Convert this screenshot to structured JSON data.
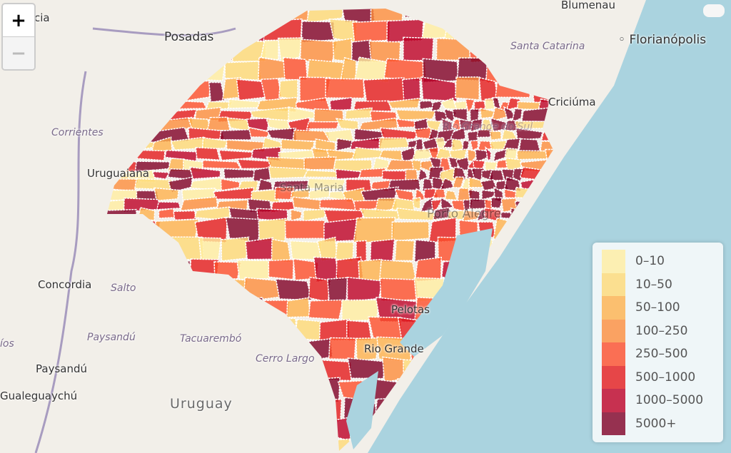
{
  "map": {
    "zoom_in_label": "+",
    "zoom_out_label": "−",
    "labels": {
      "cidade_partial": "cia",
      "posadas": "Posadas",
      "blumenau": "Blumenau",
      "florianopolis": "Florianópolis",
      "santa_catarina": "Santa Catarina",
      "criciuma": "Criciúma",
      "corrientes": "Corrientes",
      "uruguaiana": "Uruguaiana",
      "concordia": "Concordia",
      "salto": "Salto",
      "paysandu_region": "Paysandú",
      "tacuarembo": "Tacuarembó",
      "paysandu": "Paysandú",
      "rios": "íos",
      "gualeguaychu": "Gualeguaychú",
      "cerro_largo": "Cerro Largo",
      "uruguay": "Uruguay",
      "rio_grande": "Rio Grande",
      "pelotas": "Pelotas",
      "porto_alegre": "Porto Alegre",
      "santa_maria": "Santa Maria",
      "rs": "Rio Grande do Sul"
    },
    "colors": {
      "land": "#f2efe9",
      "water": "#aad3df",
      "border": "#ffffff"
    }
  },
  "legend": {
    "items": [
      {
        "label": "0–10",
        "color": "#ffeda0"
      },
      {
        "label": "10–50",
        "color": "#fed976"
      },
      {
        "label": "50–100",
        "color": "#feb24c"
      },
      {
        "label": "100–250",
        "color": "#fd8d3c"
      },
      {
        "label": "250–500",
        "color": "#fc4e2a"
      },
      {
        "label": "500–1000",
        "color": "#e31a1c"
      },
      {
        "label": "1000–5000",
        "color": "#bd0026"
      },
      {
        "label": "5000+",
        "color": "#800026"
      }
    ]
  }
}
